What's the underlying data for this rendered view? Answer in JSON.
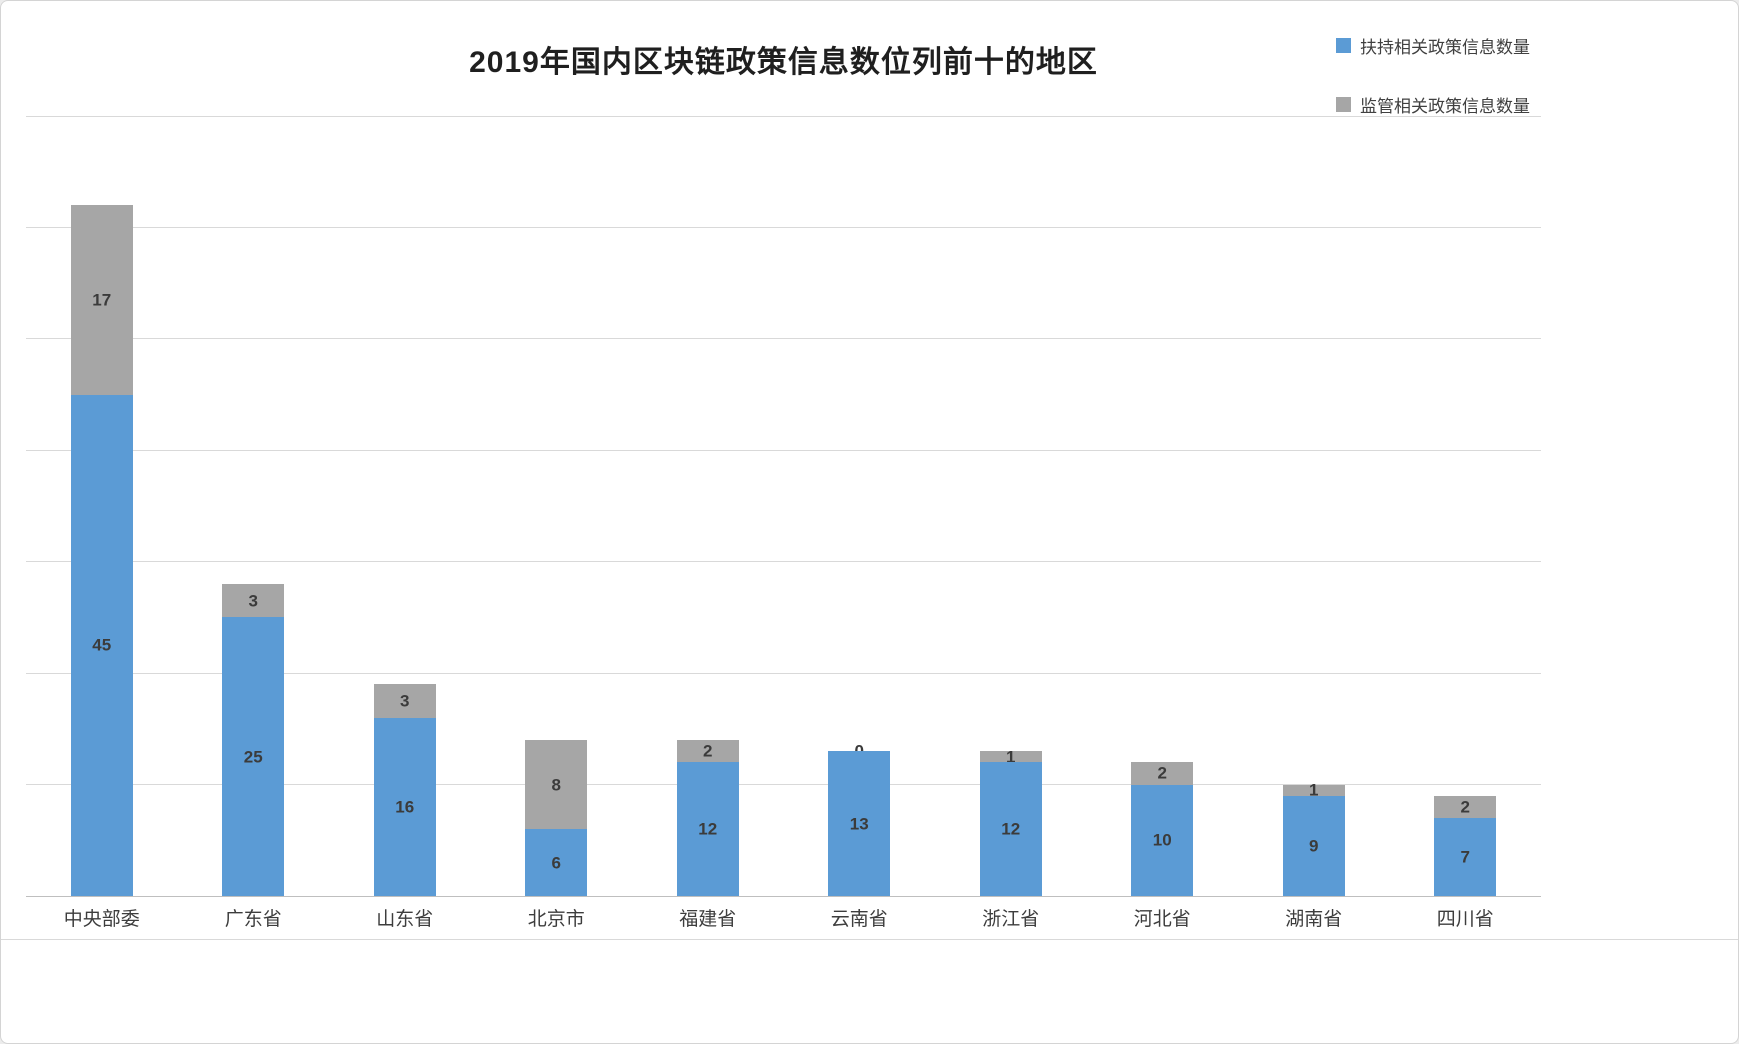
{
  "chart_data": {
    "type": "bar",
    "stacked": true,
    "title": "2019年国内区块链政策信息数位列前十的地区",
    "categories": [
      "中央部委",
      "广东省",
      "山东省",
      "北京市",
      "福建省",
      "云南省",
      "浙江省",
      "河北省",
      "湖南省",
      "四川省"
    ],
    "series": [
      {
        "name": "扶持相关政策信息数量",
        "color": "#5B9BD5",
        "values": [
          45,
          25,
          16,
          6,
          12,
          13,
          12,
          10,
          9,
          7
        ]
      },
      {
        "name": "监管相关政策信息数量",
        "color": "#A6A6A6",
        "values": [
          17,
          3,
          3,
          8,
          2,
          0,
          1,
          2,
          1,
          2
        ]
      }
    ],
    "xlabel": "",
    "ylabel": "",
    "ylim": [
      0,
      70
    ],
    "grid_step": 10,
    "grid": true,
    "legend_position": "top-right",
    "value_labels": true
  }
}
